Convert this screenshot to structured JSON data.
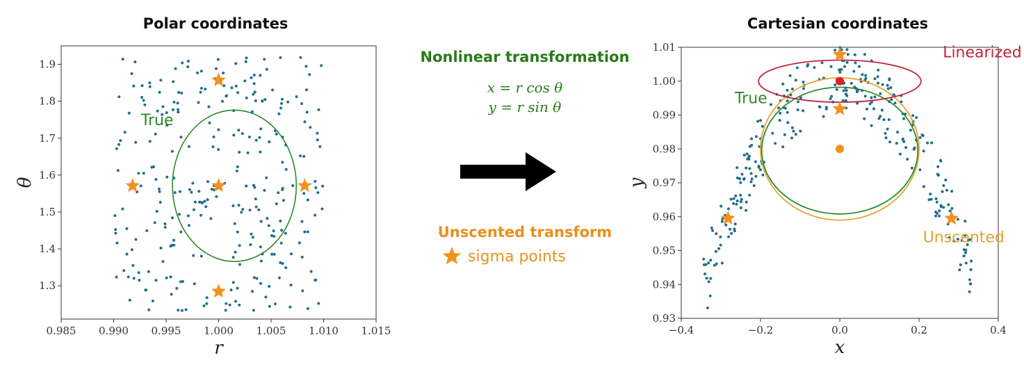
{
  "left_title": "Polar coordinates",
  "right_title": "Cartesian coordinates",
  "middle": {
    "nonlinear_title": "Nonlinear transformation",
    "eq1": "x = r cos θ",
    "eq2": "y = r sin θ",
    "unscented_title": "Unscented transform",
    "sigma_label": "sigma points"
  },
  "colors": {
    "points": "#1f6e8c",
    "sigma": "#f2921e",
    "true": "#2a8a2a",
    "unscented": "#e8a030",
    "linearized": "#c0243a",
    "arrow": "#000000"
  },
  "chart_data": [
    {
      "type": "scatter",
      "title": "Polar coordinates",
      "xlabel": "r",
      "ylabel": "θ",
      "xlim": [
        0.985,
        1.015
      ],
      "ylim": [
        1.21,
        1.95
      ],
      "xticks": [
        "0.985",
        "0.990",
        "0.995",
        "1.000",
        "1.005",
        "1.010",
        "1.015"
      ],
      "yticks": [
        "1.2",
        "1.3",
        "1.4",
        "1.5",
        "1.6",
        "1.7",
        "1.8",
        "1.9"
      ],
      "xtick_values": [
        0.985,
        0.99,
        0.995,
        1.0,
        1.005,
        1.01,
        1.015
      ],
      "ytick_values": [
        1.2,
        1.3,
        1.4,
        1.5,
        1.6,
        1.7,
        1.8,
        1.9
      ],
      "samples": {
        "distribution": "uniform",
        "r_range": [
          0.99,
          1.01
        ],
        "theta_range": [
          1.23,
          1.92
        ],
        "count": 300
      },
      "sigma_points": [
        {
          "x": 1.0,
          "y": 1.571
        },
        {
          "x": 0.9918,
          "y": 1.571
        },
        {
          "x": 1.0082,
          "y": 1.571
        },
        {
          "x": 1.0,
          "y": 1.857
        },
        {
          "x": 1.0,
          "y": 1.285
        }
      ],
      "ellipses": [
        {
          "name": "True",
          "cx": 1.0015,
          "cy": 1.571,
          "rx": 0.0059,
          "ry": 0.205,
          "color": "#2a8a2a"
        }
      ],
      "annotations": [
        {
          "text": "True",
          "x": 0.9926,
          "y": 1.735,
          "color": "#2a8a2a"
        }
      ]
    },
    {
      "type": "scatter",
      "title": "Cartesian coordinates",
      "xlabel": "x",
      "ylabel": "y",
      "xlim": [
        -0.4,
        0.4
      ],
      "ylim": [
        0.93,
        1.01
      ],
      "xticks": [
        "−0.4",
        "−0.2",
        "0.0",
        "0.2",
        "0.4"
      ],
      "yticks": [
        "0.93",
        "0.94",
        "0.95",
        "0.96",
        "0.97",
        "0.98",
        "0.99",
        "1.00",
        "1.01"
      ],
      "xtick_values": [
        -0.4,
        -0.2,
        0.0,
        0.2,
        0.4
      ],
      "ytick_values": [
        0.93,
        0.94,
        0.95,
        0.96,
        0.97,
        0.98,
        0.99,
        1.0,
        1.01
      ],
      "samples": {
        "distribution": "polar transform of uniform r∈[0.99,1.01], θ∈[1.23,1.92]",
        "count": 300
      },
      "sigma_points": [
        {
          "x": 0.0,
          "y": 1.0078
        },
        {
          "x": 0.0,
          "y": 0.9918
        },
        {
          "x": -0.282,
          "y": 0.9595
        },
        {
          "x": 0.282,
          "y": 0.9595
        }
      ],
      "means": [
        {
          "name": "Unscented mean",
          "x": 0.0,
          "y": 0.98,
          "color": "#f2921e"
        },
        {
          "name": "Linearized mean",
          "x": 0.0,
          "y": 1.0,
          "color": "#e02020"
        }
      ],
      "ellipses": [
        {
          "name": "True",
          "cx": 0.0,
          "cy": 0.9795,
          "rx": 0.197,
          "ry": 0.0187,
          "color": "#2a8a2a"
        },
        {
          "name": "Unscented",
          "cx": 0.0,
          "cy": 0.98,
          "rx": 0.2,
          "ry": 0.021,
          "color": "#e8a030"
        },
        {
          "name": "Linearized",
          "cx": 0.0,
          "cy": 1.0,
          "rx": 0.205,
          "ry": 0.0062,
          "color": "#c0243a"
        }
      ],
      "annotations": [
        {
          "text": "True",
          "x": -0.265,
          "y": 0.9935,
          "color": "#2a8a2a"
        },
        {
          "text": "Unscented",
          "x": 0.21,
          "y": 0.9525,
          "color": "#e8a030"
        },
        {
          "text": "Linearized",
          "x": 0.26,
          "y": 1.007,
          "color": "#c0243a"
        }
      ]
    }
  ]
}
